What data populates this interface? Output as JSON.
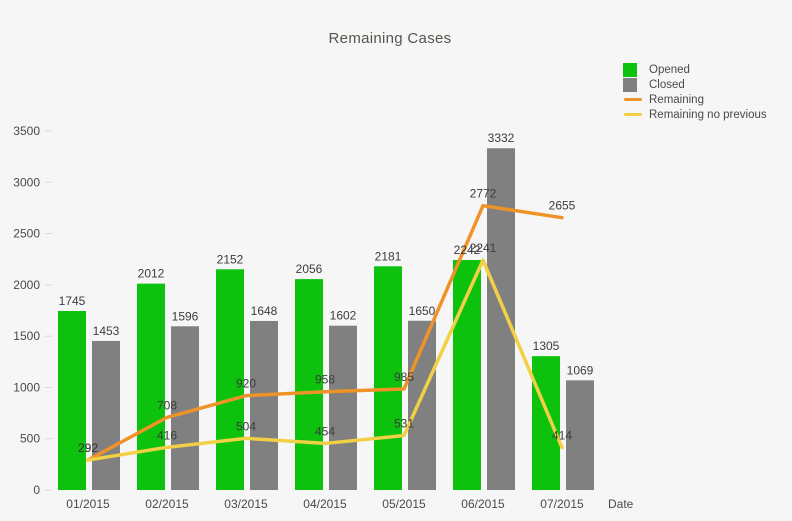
{
  "page": {
    "background": "#f6f6f6"
  },
  "chart_data": {
    "type": "bar+line",
    "title": "Remaining Cases",
    "xlabel": "Date",
    "categories": [
      "01/2015",
      "02/2015",
      "03/2015",
      "04/2015",
      "05/2015",
      "06/2015",
      "07/2015"
    ],
    "series": [
      {
        "name": "Opened",
        "type": "bar",
        "color": "#0cc20c",
        "values": [
          1745,
          2012,
          2152,
          2056,
          2181,
          2242,
          1305
        ]
      },
      {
        "name": "Closed",
        "type": "bar",
        "color": "#808080",
        "values": [
          1453,
          1596,
          1648,
          1602,
          1650,
          3332,
          1069
        ]
      },
      {
        "name": "Remaining",
        "type": "line",
        "color": "#ef9329",
        "values": [
          292,
          708,
          920,
          958,
          985,
          2772,
          2655
        ]
      },
      {
        "name": "Remaining no previous",
        "type": "line",
        "color": "#f1d046",
        "values": [
          292,
          416,
          504,
          454,
          531,
          2241,
          414
        ]
      }
    ],
    "ylim": [
      0,
      3500
    ],
    "yticks": [
      0,
      500,
      1000,
      1500,
      2000,
      2500,
      3000,
      3500
    ],
    "grid": false,
    "legend_position": "top-right",
    "label_color": "#3c3c3c"
  }
}
